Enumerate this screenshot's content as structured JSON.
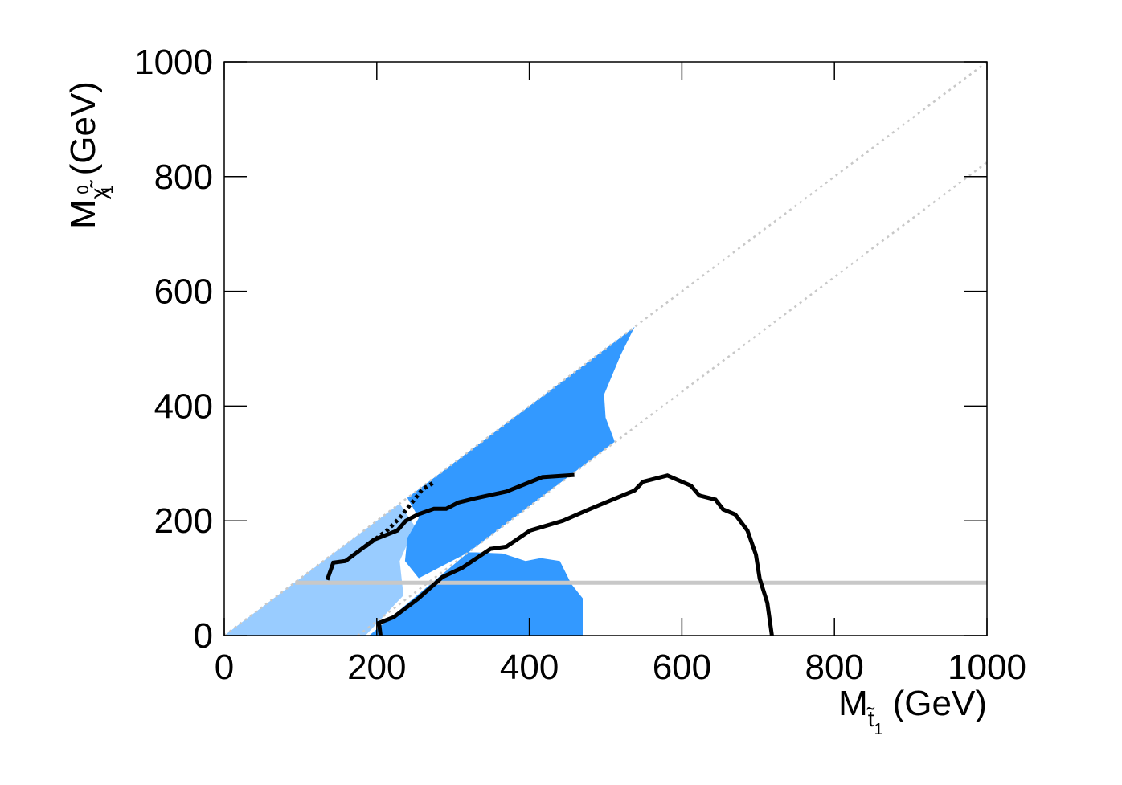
{
  "chart_data": {
    "type": "exclusion",
    "x_label": [
      "M",
      "t̃",
      "1",
      "(GeV)"
    ],
    "y_label": [
      "M",
      "χ̃",
      "0",
      "1",
      "(GeV)"
    ],
    "xlim": [
      0,
      1000
    ],
    "ylim": [
      0,
      1000
    ],
    "xticks": [
      0,
      200,
      400,
      600,
      800,
      1000
    ],
    "yticks": [
      0,
      200,
      400,
      600,
      800,
      1000
    ],
    "regions": [
      {
        "color": "#99ccff",
        "x": [
          0,
          185,
          235,
          230,
          250,
          230
        ],
        "y": [
          0,
          0,
          70,
          130,
          190,
          230
        ]
      },
      {
        "color": "#3399ff",
        "x": [
          240,
          538,
          520,
          498,
          500,
          512,
          320,
          255,
          237,
          240,
          255
        ],
        "y": [
          240,
          538,
          490,
          420,
          380,
          338,
          145,
          100,
          130,
          170,
          205
        ]
      },
      {
        "color": "#3399ff",
        "x": [
          190,
          470,
          470,
          455,
          440,
          415,
          395,
          365,
          330,
          320
        ],
        "y": [
          0,
          0,
          65,
          90,
          130,
          135,
          130,
          143,
          145,
          145
        ]
      }
    ],
    "lines": [
      {
        "color": "#c8c8c8",
        "style": "dotted",
        "x": [
          0,
          1000
        ],
        "y": [
          0,
          1000
        ]
      },
      {
        "color": "#c8c8c8",
        "style": "dotted",
        "x": [
          175,
          1000
        ],
        "y": [
          0,
          825
        ]
      },
      {
        "color": "#c8c8c8",
        "style": "solid",
        "x": [
          93,
          1000
        ],
        "y": [
          92,
          92
        ]
      },
      {
        "color": "#000000",
        "style": "solid",
        "x": [
          205,
          203,
          222,
          254,
          286,
          312,
          349,
          370,
          401,
          444,
          475,
          538,
          549,
          581,
          612,
          623,
          644,
          654,
          670,
          686,
          697,
          702,
          712,
          718
        ],
        "y": [
          0,
          22,
          32,
          64,
          102,
          118,
          151,
          155,
          183,
          200,
          218,
          253,
          268,
          279,
          261,
          244,
          237,
          220,
          211,
          183,
          141,
          99,
          57,
          0
        ]
      },
      {
        "color": "#000000",
        "style": "solid",
        "x": [
          135,
          143,
          159,
          196,
          227,
          238,
          254,
          275,
          291,
          307,
          328,
          370,
          417,
          459
        ],
        "y": [
          97,
          127,
          130,
          167,
          183,
          200,
          211,
          221,
          221,
          232,
          239,
          251,
          276,
          280
        ]
      },
      {
        "color": "#000000",
        "style": "dotted",
        "x": [
          185,
          200,
          215,
          230,
          245,
          260,
          275
        ],
        "y": [
          155,
          170,
          185,
          205,
          230,
          255,
          267
        ]
      }
    ]
  }
}
